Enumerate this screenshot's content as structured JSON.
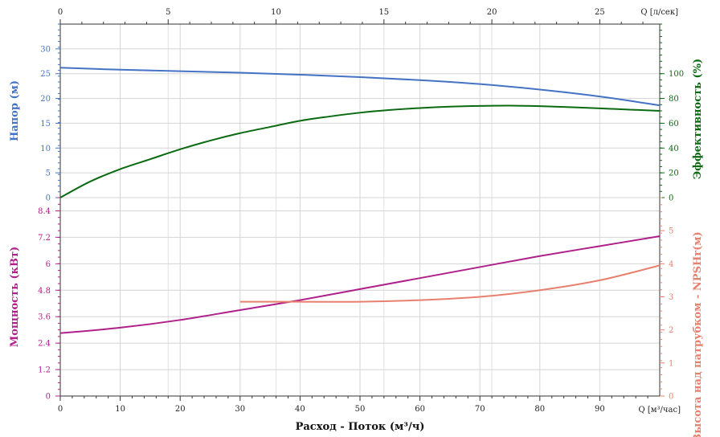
{
  "chart_data": {
    "type": "line",
    "x_bottom": {
      "label": "Расход - Поток (м³/ч)",
      "unit_label": "Q [м³/час]",
      "range": [
        0,
        100
      ],
      "ticks": [
        0,
        10,
        20,
        30,
        40,
        50,
        60,
        70,
        80,
        90
      ]
    },
    "x_top": {
      "unit_label": "Q [л/сек]",
      "range": [
        0,
        27.78
      ],
      "ticks": [
        0,
        5,
        10,
        15,
        20,
        25
      ]
    },
    "panels": [
      {
        "name": "upper",
        "left_axis": {
          "label": "Напор (м)",
          "color": "#4472c4",
          "range": [
            0,
            35
          ],
          "ticks": [
            0,
            5,
            10,
            15,
            20,
            25,
            30
          ]
        },
        "right_axis": {
          "label": "Эффективность (%)",
          "color": "#0a6a10",
          "range": [
            0,
            140
          ],
          "ticks": [
            0,
            20,
            40,
            60,
            80,
            100
          ]
        },
        "series": [
          {
            "axis": "left",
            "color": "#4472c4",
            "points": [
              [
                0,
                26.2
              ],
              [
                10,
                25.8
              ],
              [
                20,
                25.5
              ],
              [
                30,
                25.2
              ],
              [
                40,
                24.8
              ],
              [
                50,
                24.3
              ],
              [
                60,
                23.7
              ],
              [
                70,
                22.9
              ],
              [
                80,
                21.8
              ],
              [
                90,
                20.4
              ],
              [
                100,
                18.6
              ]
            ]
          },
          {
            "axis": "right",
            "color": "#0a6a10",
            "points": [
              [
                0,
                0
              ],
              [
                5,
                13
              ],
              [
                10,
                23
              ],
              [
                15,
                31
              ],
              [
                20,
                39
              ],
              [
                25,
                46
              ],
              [
                30,
                52
              ],
              [
                35,
                57
              ],
              [
                40,
                62
              ],
              [
                45,
                65.5
              ],
              [
                50,
                68.5
              ],
              [
                55,
                70.7
              ],
              [
                60,
                72.3
              ],
              [
                65,
                73.4
              ],
              [
                70,
                74
              ],
              [
                75,
                74.2
              ],
              [
                80,
                73.8
              ],
              [
                85,
                73
              ],
              [
                90,
                72
              ],
              [
                95,
                71
              ],
              [
                100,
                70
              ]
            ]
          }
        ]
      },
      {
        "name": "lower",
        "left_axis": {
          "label": "Мощность (кВт)",
          "color": "#b0208a",
          "range": [
            0,
            9
          ],
          "ticks": [
            0,
            1.2,
            2.4,
            3.6,
            4.8,
            6,
            7.2,
            8.4
          ]
        },
        "right_axis": {
          "label": "Высота над патрубком - NPSHr(м)",
          "color": "#e8806e",
          "range": [
            0,
            6
          ],
          "ticks": [
            0,
            1,
            2,
            3,
            4,
            5
          ]
        },
        "series": [
          {
            "axis": "left",
            "color": "#b0208a",
            "points": [
              [
                0,
                2.85
              ],
              [
                10,
                3.1
              ],
              [
                20,
                3.45
              ],
              [
                30,
                3.9
              ],
              [
                40,
                4.35
              ],
              [
                50,
                4.85
              ],
              [
                60,
                5.35
              ],
              [
                70,
                5.85
              ],
              [
                80,
                6.35
              ],
              [
                90,
                6.8
              ],
              [
                100,
                7.25
              ]
            ]
          },
          {
            "axis": "right",
            "color": "#e8806e",
            "points": [
              [
                30,
                2.85
              ],
              [
                40,
                2.85
              ],
              [
                50,
                2.85
              ],
              [
                60,
                2.9
              ],
              [
                70,
                3.0
              ],
              [
                80,
                3.2
              ],
              [
                90,
                3.5
              ],
              [
                100,
                3.95
              ]
            ]
          }
        ]
      }
    ],
    "grid": true
  }
}
